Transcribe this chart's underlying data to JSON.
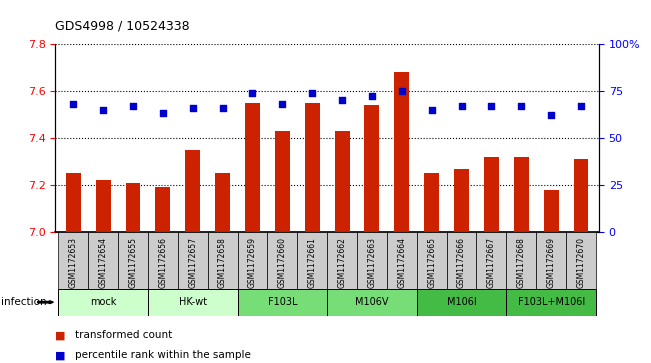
{
  "title": "GDS4998 / 10524338",
  "samples": [
    "GSM1172653",
    "GSM1172654",
    "GSM1172655",
    "GSM1172656",
    "GSM1172657",
    "GSM1172658",
    "GSM1172659",
    "GSM1172660",
    "GSM1172661",
    "GSM1172662",
    "GSM1172663",
    "GSM1172664",
    "GSM1172665",
    "GSM1172666",
    "GSM1172667",
    "GSM1172668",
    "GSM1172669",
    "GSM1172670"
  ],
  "bar_values": [
    7.25,
    7.22,
    7.21,
    7.19,
    7.35,
    7.25,
    7.55,
    7.43,
    7.55,
    7.43,
    7.54,
    7.68,
    7.25,
    7.27,
    7.32,
    7.32,
    7.18,
    7.31
  ],
  "percentile_values": [
    68,
    65,
    67,
    63,
    66,
    66,
    74,
    68,
    74,
    70,
    72,
    75,
    65,
    67,
    67,
    67,
    62,
    67
  ],
  "bar_color": "#cc2200",
  "dot_color": "#0000cc",
  "ylim_left": [
    7.0,
    7.8
  ],
  "ylim_right": [
    0,
    100
  ],
  "yticks_left": [
    7.0,
    7.2,
    7.4,
    7.6,
    7.8
  ],
  "yticks_right": [
    0,
    25,
    50,
    75,
    100
  ],
  "groups": [
    {
      "label": "mock",
      "indices": [
        0,
        1,
        2
      ],
      "color": "#ccffcc"
    },
    {
      "label": "HK-wt",
      "indices": [
        3,
        4,
        5
      ],
      "color": "#ccffcc"
    },
    {
      "label": "F103L",
      "indices": [
        6,
        7,
        8
      ],
      "color": "#77dd77"
    },
    {
      "label": "M106V",
      "indices": [
        9,
        10,
        11
      ],
      "color": "#77dd77"
    },
    {
      "label": "M106I",
      "indices": [
        12,
        13,
        14
      ],
      "color": "#44bb44"
    },
    {
      "label": "F103L+M106I",
      "indices": [
        15,
        16,
        17
      ],
      "color": "#44bb44"
    }
  ],
  "sample_box_color": "#cccccc",
  "infection_label": "infection",
  "legend_bar_label": "transformed count",
  "legend_dot_label": "percentile rank within the sample"
}
